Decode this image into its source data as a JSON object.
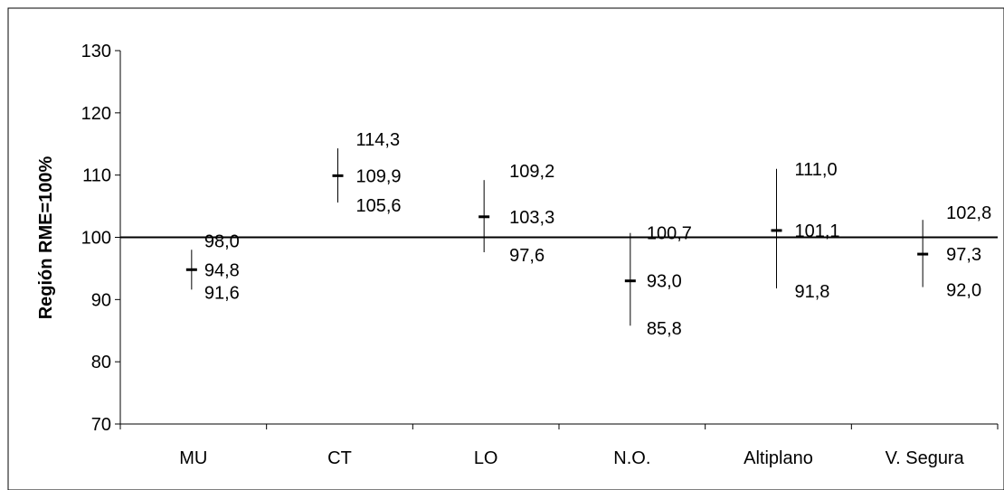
{
  "chart_data": {
    "type": "error-bar",
    "ylabel": "Región RME=100%",
    "ylim": [
      70,
      130
    ],
    "yticks": [
      70,
      80,
      90,
      100,
      110,
      120,
      130
    ],
    "reference_line": 100,
    "categories": [
      "MU",
      "CT",
      "LO",
      "N.O.",
      "Altiplano",
      "V. Segura"
    ],
    "series": [
      {
        "estimate": [
          94.8,
          109.9,
          103.3,
          93.0,
          101.1,
          97.3
        ],
        "upper": [
          98.0,
          114.3,
          109.2,
          100.7,
          111.0,
          102.8
        ],
        "lower": [
          91.6,
          105.6,
          97.6,
          85.8,
          91.8,
          92.0
        ]
      }
    ],
    "labels": {
      "upper": [
        "98,0",
        "114,3",
        "109,2",
        "100,7",
        "111,0",
        "102,8"
      ],
      "estimate": [
        "94,8",
        "109,9",
        "103,3",
        "93,0",
        "101,1",
        "97,3"
      ],
      "lower": [
        "91,6",
        "105,6",
        "97,6",
        "85,8",
        "91,8",
        "92,0"
      ]
    },
    "grid": false,
    "legend": "none"
  }
}
